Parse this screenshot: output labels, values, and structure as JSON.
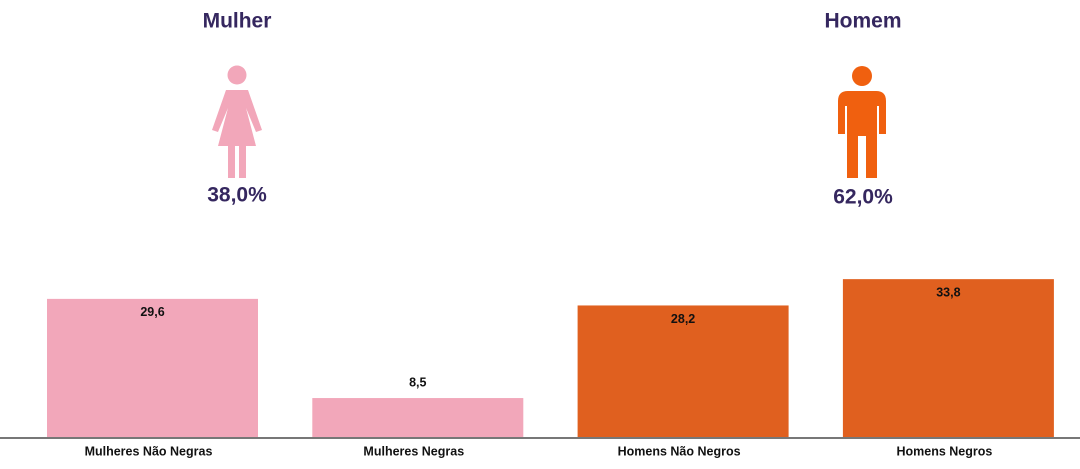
{
  "chart_data": {
    "type": "bar",
    "categories": [
      "Mulheres Não Negras",
      "Mulheres Negras",
      "Homens Não Negros",
      "Homens Negros"
    ],
    "values": [
      29.6,
      8.5,
      28.2,
      33.8
    ],
    "value_labels": [
      "29,6",
      "8,5",
      "28,2",
      "33,8"
    ],
    "colors": [
      "#f2a7ba",
      "#f2a7ba",
      "#e0601f",
      "#e0601f"
    ],
    "groups": [
      {
        "label": "Mulher",
        "share": 38.0,
        "share_label": "38,0%",
        "color": "#f2a7ba"
      },
      {
        "label": "Homem",
        "share": 62.0,
        "share_label": "62,0%",
        "color": "#f0600f"
      }
    ]
  }
}
